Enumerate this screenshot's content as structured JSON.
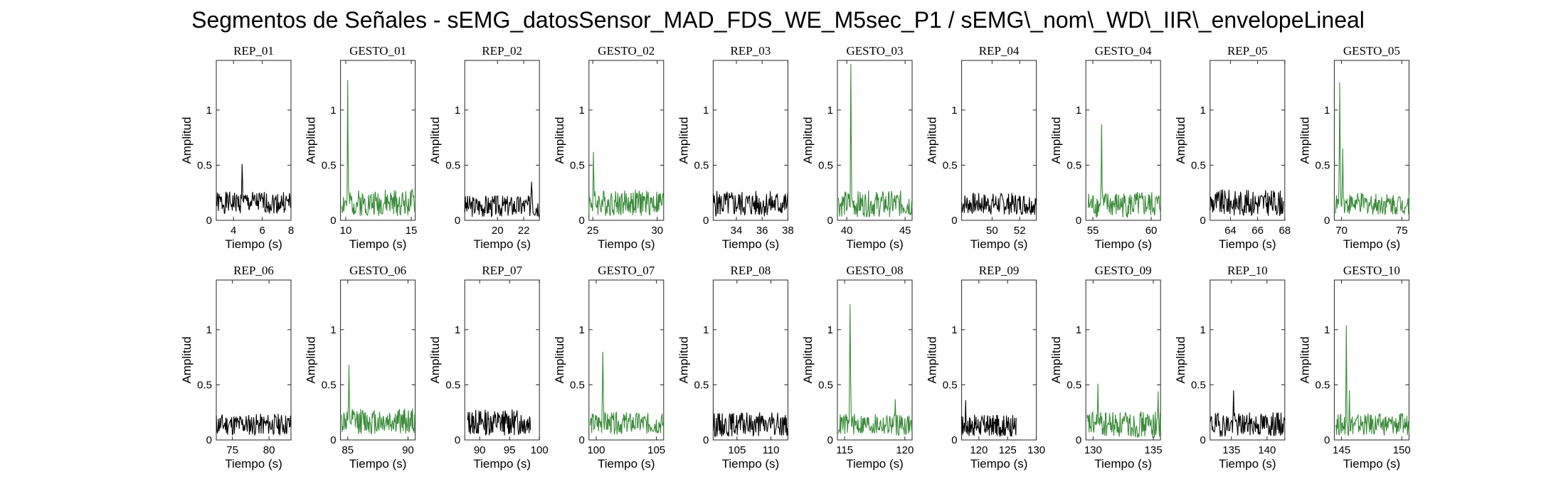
{
  "title": "Segmentos de Señales - sEMG_datosSensor_MAD_FDS_WE_M5sec_P1 / sEMG\\_nom\\_WD\\_IIR\\_envelopeLineal",
  "colors": {
    "rep": "#000000",
    "gesto": "#3a8a3a"
  },
  "chart_data": [
    {
      "type": "line",
      "title": "REP_01",
      "xlabel": "Tiempo (s)",
      "ylabel": "Amplitud",
      "xlim": [
        2.8,
        8
      ],
      "ylim": [
        0,
        1.45
      ],
      "xticks": [
        4,
        6,
        8
      ],
      "yticks": [
        0,
        0.5,
        1
      ],
      "ytick_labels": [
        "0",
        "0.5",
        "1"
      ],
      "series": [
        {
          "name": "REP_01",
          "kind": "rep",
          "x_range": [
            2.8,
            8
          ],
          "base": 0.16,
          "noise": 0.1,
          "seed": 1,
          "peaks": [
            {
              "x": 4.6,
              "y": 0.51,
              "w": 0.06
            }
          ]
        }
      ]
    },
    {
      "type": "line",
      "title": "GESTO_01",
      "xlabel": "Tiempo (s)",
      "ylabel": "Amplitud",
      "xlim": [
        9.6,
        15.3
      ],
      "ylim": [
        0,
        1.45
      ],
      "xticks": [
        10,
        15
      ],
      "yticks": [
        0,
        0.5,
        1
      ],
      "ytick_labels": [
        "0",
        "0.5",
        "1"
      ],
      "series": [
        {
          "name": "GESTO_01",
          "kind": "gesto",
          "x_range": [
            9.7,
            15.3
          ],
          "base": 0.16,
          "noise": 0.12,
          "seed": 2,
          "peaks": [
            {
              "x": 10.15,
              "y": 1.27,
              "w": 0.05
            }
          ]
        }
      ]
    },
    {
      "type": "line",
      "title": "REP_02",
      "xlabel": "Tiempo (s)",
      "ylabel": "Amplitud",
      "xlim": [
        17.5,
        23.2
      ],
      "ylim": [
        0,
        1.45
      ],
      "xticks": [
        20,
        22
      ],
      "yticks": [
        0,
        0.5,
        1
      ],
      "ytick_labels": [
        "0",
        "0.5",
        "1"
      ],
      "series": [
        {
          "name": "REP_02",
          "kind": "rep",
          "x_range": [
            17.5,
            23.2
          ],
          "base": 0.13,
          "noise": 0.1,
          "seed": 3,
          "peaks": [
            {
              "x": 22.6,
              "y": 0.35,
              "w": 0.08
            }
          ]
        }
      ]
    },
    {
      "type": "line",
      "title": "GESTO_02",
      "xlabel": "Tiempo (s)",
      "ylabel": "Amplitud",
      "xlim": [
        24.7,
        30.5
      ],
      "ylim": [
        0,
        1.45
      ],
      "xticks": [
        25,
        30
      ],
      "yticks": [
        0,
        0.5,
        1
      ],
      "ytick_labels": [
        "0",
        "0.5",
        "1"
      ],
      "series": [
        {
          "name": "GESTO_02",
          "kind": "gesto",
          "x_range": [
            24.7,
            30.5
          ],
          "base": 0.16,
          "noise": 0.12,
          "seed": 4,
          "peaks": [
            {
              "x": 25.05,
              "y": 0.62,
              "w": 0.06
            }
          ]
        }
      ]
    },
    {
      "type": "line",
      "title": "REP_03",
      "xlabel": "Tiempo (s)",
      "ylabel": "Amplitud",
      "xlim": [
        32.2,
        38
      ],
      "ylim": [
        0,
        1.45
      ],
      "xticks": [
        34,
        36,
        38
      ],
      "yticks": [
        0,
        0.5,
        1
      ],
      "ytick_labels": [
        "0",
        "0.5",
        "1"
      ],
      "series": [
        {
          "name": "REP_03",
          "kind": "rep",
          "x_range": [
            32.2,
            38
          ],
          "base": 0.15,
          "noise": 0.12,
          "seed": 5,
          "peaks": []
        }
      ]
    },
    {
      "type": "line",
      "title": "GESTO_03",
      "xlabel": "Tiempo (s)",
      "ylabel": "Amplitud",
      "xlim": [
        39.2,
        45.6
      ],
      "ylim": [
        0,
        1.45
      ],
      "xticks": [
        40,
        45
      ],
      "yticks": [
        0,
        0.5,
        1
      ],
      "ytick_labels": [
        "0",
        "0.5",
        "1"
      ],
      "series": [
        {
          "name": "GESTO_03",
          "kind": "gesto",
          "x_range": [
            39.3,
            45.6
          ],
          "base": 0.15,
          "noise": 0.12,
          "seed": 6,
          "peaks": [
            {
              "x": 40.35,
              "y": 1.42,
              "w": 0.06
            }
          ]
        }
      ]
    },
    {
      "type": "line",
      "title": "REP_04",
      "xlabel": "Tiempo (s)",
      "ylabel": "Amplitud",
      "xlim": [
        47.8,
        53.2
      ],
      "ylim": [
        0,
        1.45
      ],
      "xticks": [
        50,
        52
      ],
      "yticks": [
        0,
        0.5,
        1
      ],
      "ytick_labels": [
        "0",
        "0.5",
        "1"
      ],
      "series": [
        {
          "name": "REP_04",
          "kind": "rep",
          "x_range": [
            47.8,
            53.2
          ],
          "base": 0.15,
          "noise": 0.1,
          "seed": 7,
          "peaks": []
        }
      ]
    },
    {
      "type": "line",
      "title": "GESTO_04",
      "xlabel": "Tiempo (s)",
      "ylabel": "Amplitud",
      "xlim": [
        54.4,
        60.8
      ],
      "ylim": [
        0,
        1.45
      ],
      "xticks": [
        55,
        60
      ],
      "yticks": [
        0,
        0.5,
        1
      ],
      "ytick_labels": [
        "0",
        "0.5",
        "1"
      ],
      "series": [
        {
          "name": "GESTO_04",
          "kind": "gesto",
          "x_range": [
            54.6,
            60.8
          ],
          "base": 0.14,
          "noise": 0.12,
          "seed": 8,
          "peaks": [
            {
              "x": 55.75,
              "y": 0.87,
              "w": 0.06
            }
          ]
        }
      ]
    },
    {
      "type": "line",
      "title": "REP_05",
      "xlabel": "Tiempo (s)",
      "ylabel": "Amplitud",
      "xlim": [
        62.5,
        68
      ],
      "ylim": [
        0,
        1.45
      ],
      "xticks": [
        64,
        66,
        68
      ],
      "yticks": [
        0,
        0.5,
        1
      ],
      "ytick_labels": [
        "0",
        "0.5",
        "1"
      ],
      "series": [
        {
          "name": "REP_05",
          "kind": "rep",
          "x_range": [
            62.5,
            67.9
          ],
          "base": 0.16,
          "noise": 0.12,
          "seed": 9,
          "peaks": []
        }
      ]
    },
    {
      "type": "line",
      "title": "GESTO_05",
      "xlabel": "Tiempo (s)",
      "ylabel": "Amplitud",
      "xlim": [
        69.4,
        75.6
      ],
      "ylim": [
        0,
        1.45
      ],
      "xticks": [
        70,
        75
      ],
      "yticks": [
        0,
        0.5,
        1
      ],
      "ytick_labels": [
        "0",
        "0.5",
        "1"
      ],
      "series": [
        {
          "name": "GESTO_05",
          "kind": "gesto",
          "x_range": [
            69.5,
            75.6
          ],
          "base": 0.15,
          "noise": 0.1,
          "seed": 10,
          "peaks": [
            {
              "x": 69.85,
              "y": 1.25,
              "w": 0.07
            },
            {
              "x": 70.1,
              "y": 0.65,
              "w": 0.06
            }
          ]
        }
      ]
    },
    {
      "type": "line",
      "title": "REP_06",
      "xlabel": "Tiempo (s)",
      "ylabel": "Amplitud",
      "xlim": [
        72.8,
        83
      ],
      "ylim": [
        0,
        1.45
      ],
      "xticks": [
        75,
        80
      ],
      "yticks": [
        0,
        0.5,
        1
      ],
      "ytick_labels": [
        "0",
        "0.5",
        "1"
      ],
      "series": [
        {
          "name": "REP_06",
          "kind": "rep",
          "x_range": [
            72.8,
            83
          ],
          "base": 0.14,
          "noise": 0.1,
          "seed": 11,
          "peaks": []
        }
      ]
    },
    {
      "type": "line",
      "title": "GESTO_06",
      "xlabel": "Tiempo (s)",
      "ylabel": "Amplitud",
      "xlim": [
        84.4,
        90.6
      ],
      "ylim": [
        0,
        1.45
      ],
      "xticks": [
        85,
        90
      ],
      "yticks": [
        0,
        0.5,
        1
      ],
      "ytick_labels": [
        "0",
        "0.5",
        "1"
      ],
      "series": [
        {
          "name": "GESTO_06",
          "kind": "gesto",
          "x_range": [
            84.5,
            90.6
          ],
          "base": 0.17,
          "noise": 0.12,
          "seed": 12,
          "peaks": [
            {
              "x": 85.1,
              "y": 0.68,
              "w": 0.06
            }
          ]
        }
      ]
    },
    {
      "type": "line",
      "title": "REP_07",
      "xlabel": "Tiempo (s)",
      "ylabel": "Amplitud",
      "xlim": [
        87.5,
        100
      ],
      "ylim": [
        0,
        1.45
      ],
      "xticks": [
        90,
        95,
        100
      ],
      "yticks": [
        0,
        0.5,
        1
      ],
      "ytick_labels": [
        "0",
        "0.5",
        "1"
      ],
      "series": [
        {
          "name": "REP_07",
          "kind": "rep",
          "x_range": [
            88,
            98.5
          ],
          "base": 0.16,
          "noise": 0.12,
          "seed": 13,
          "peaks": []
        }
      ]
    },
    {
      "type": "line",
      "title": "GESTO_07",
      "xlabel": "Tiempo (s)",
      "ylabel": "Amplitud",
      "xlim": [
        99.4,
        105.6
      ],
      "ylim": [
        0,
        1.45
      ],
      "xticks": [
        100,
        105
      ],
      "yticks": [
        0,
        0.5,
        1
      ],
      "ytick_labels": [
        "0",
        "0.5",
        "1"
      ],
      "series": [
        {
          "name": "GESTO_07",
          "kind": "gesto",
          "x_range": [
            99.5,
            105.6
          ],
          "base": 0.15,
          "noise": 0.1,
          "seed": 14,
          "peaks": [
            {
              "x": 100.55,
              "y": 0.8,
              "w": 0.08
            }
          ]
        }
      ]
    },
    {
      "type": "line",
      "title": "REP_08",
      "xlabel": "Tiempo (s)",
      "ylabel": "Amplitud",
      "xlim": [
        101.5,
        112.5
      ],
      "ylim": [
        0,
        1.45
      ],
      "xticks": [
        105,
        110
      ],
      "yticks": [
        0,
        0.5,
        1
      ],
      "ytick_labels": [
        "0",
        "0.5",
        "1"
      ],
      "series": [
        {
          "name": "REP_08",
          "kind": "rep",
          "x_range": [
            101.5,
            112.5
          ],
          "base": 0.14,
          "noise": 0.11,
          "seed": 15,
          "peaks": []
        }
      ]
    },
    {
      "type": "line",
      "title": "GESTO_08",
      "xlabel": "Tiempo (s)",
      "ylabel": "Amplitud",
      "xlim": [
        114.4,
        120.6
      ],
      "ylim": [
        0,
        1.45
      ],
      "xticks": [
        115,
        120
      ],
      "yticks": [
        0,
        0.5,
        1
      ],
      "ytick_labels": [
        "0",
        "0.5",
        "1"
      ],
      "series": [
        {
          "name": "GESTO_08",
          "kind": "gesto",
          "x_range": [
            114.5,
            120.6
          ],
          "base": 0.14,
          "noise": 0.1,
          "seed": 16,
          "peaks": [
            {
              "x": 115.45,
              "y": 1.23,
              "w": 0.08
            },
            {
              "x": 119.2,
              "y": 0.37,
              "w": 0.06
            }
          ]
        }
      ]
    },
    {
      "type": "line",
      "title": "REP_09",
      "xlabel": "Tiempo (s)",
      "ylabel": "Amplitud",
      "xlim": [
        117,
        130
      ],
      "ylim": [
        0,
        1.45
      ],
      "xticks": [
        120,
        125,
        130
      ],
      "yticks": [
        0,
        0.5,
        1
      ],
      "ytick_labels": [
        "0",
        "0.5",
        "1"
      ],
      "series": [
        {
          "name": "REP_09",
          "kind": "rep",
          "x_range": [
            117,
            126.5
          ],
          "base": 0.13,
          "noise": 0.1,
          "seed": 17,
          "peaks": [
            {
              "x": 117.7,
              "y": 0.36,
              "w": 0.1
            }
          ]
        }
      ]
    },
    {
      "type": "line",
      "title": "GESTO_09",
      "xlabel": "Tiempo (s)",
      "ylabel": "Amplitud",
      "xlim": [
        129.4,
        135.6
      ],
      "ylim": [
        0,
        1.45
      ],
      "xticks": [
        130,
        135
      ],
      "yticks": [
        0,
        0.5,
        1
      ],
      "ytick_labels": [
        "0",
        "0.5",
        "1"
      ],
      "series": [
        {
          "name": "GESTO_09",
          "kind": "gesto",
          "x_range": [
            129.5,
            135.6
          ],
          "base": 0.14,
          "noise": 0.12,
          "seed": 18,
          "peaks": [
            {
              "x": 130.4,
              "y": 0.51,
              "w": 0.06
            },
            {
              "x": 135.4,
              "y": 0.44,
              "w": 0.05
            }
          ]
        }
      ]
    },
    {
      "type": "line",
      "title": "REP_10",
      "xlabel": "Tiempo (s)",
      "ylabel": "Amplitud",
      "xlim": [
        132,
        142.5
      ],
      "ylim": [
        0,
        1.45
      ],
      "xticks": [
        135,
        140
      ],
      "yticks": [
        0,
        0.5,
        1
      ],
      "ytick_labels": [
        "0",
        "0.5",
        "1"
      ],
      "series": [
        {
          "name": "REP_10",
          "kind": "rep",
          "x_range": [
            132,
            142.5
          ],
          "base": 0.14,
          "noise": 0.11,
          "seed": 19,
          "peaks": [
            {
              "x": 135.3,
              "y": 0.45,
              "w": 0.1
            }
          ]
        }
      ]
    },
    {
      "type": "line",
      "title": "GESTO_10",
      "xlabel": "Tiempo (s)",
      "ylabel": "Amplitud",
      "xlim": [
        144.4,
        150.6
      ],
      "ylim": [
        0,
        1.45
      ],
      "xticks": [
        145,
        150
      ],
      "yticks": [
        0,
        0.5,
        1
      ],
      "ytick_labels": [
        "0",
        "0.5",
        "1"
      ],
      "series": [
        {
          "name": "GESTO_10",
          "kind": "gesto",
          "x_range": [
            144.5,
            150.6
          ],
          "base": 0.14,
          "noise": 0.1,
          "seed": 20,
          "peaks": [
            {
              "x": 145.4,
              "y": 1.04,
              "w": 0.06
            },
            {
              "x": 145.65,
              "y": 0.45,
              "w": 0.05
            }
          ]
        }
      ]
    }
  ]
}
